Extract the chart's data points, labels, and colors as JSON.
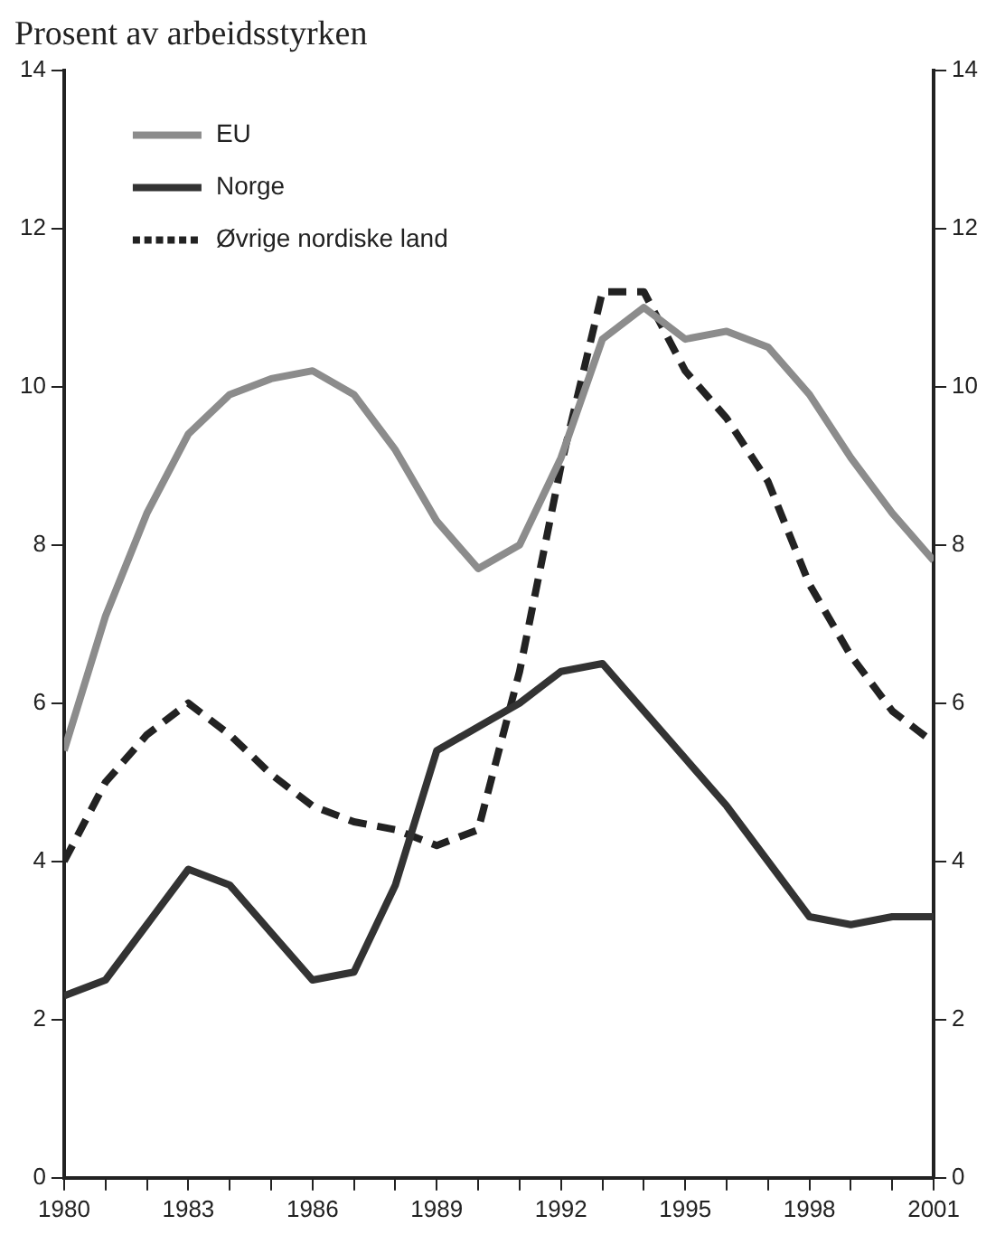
{
  "chart_data": {
    "type": "line",
    "title": "Prosent av arbeidsstyrken",
    "x": [
      1980,
      1981,
      1982,
      1983,
      1984,
      1985,
      1986,
      1987,
      1988,
      1989,
      1990,
      1991,
      1992,
      1993,
      1994,
      1995,
      1996,
      1997,
      1998,
      1999,
      2000,
      2001
    ],
    "series": [
      {
        "name": "EU",
        "color": "#8c8c8c",
        "line_style": "solid",
        "values": [
          5.4,
          7.1,
          8.4,
          9.4,
          9.9,
          10.1,
          10.2,
          9.9,
          9.2,
          8.3,
          7.7,
          8.0,
          9.1,
          10.6,
          11.0,
          10.6,
          10.7,
          10.5,
          9.9,
          9.1,
          8.4,
          7.8
        ]
      },
      {
        "name": "Norge",
        "color": "#333333",
        "line_style": "solid",
        "values": [
          2.3,
          2.5,
          3.2,
          3.9,
          3.7,
          3.1,
          2.5,
          2.6,
          3.7,
          5.4,
          5.7,
          6.0,
          6.4,
          6.5,
          5.9,
          5.3,
          4.7,
          4.0,
          3.3,
          3.2,
          3.3,
          3.3
        ]
      },
      {
        "name": "Øvrige nordiske land",
        "color": "#222222",
        "line_style": "dashed",
        "values": [
          4.0,
          5.0,
          5.6,
          6.0,
          5.6,
          5.1,
          4.7,
          4.5,
          4.4,
          4.2,
          4.4,
          6.4,
          9.0,
          11.2,
          11.2,
          10.2,
          9.6,
          8.8,
          7.5,
          6.6,
          5.9,
          5.5
        ]
      }
    ],
    "xlim": [
      1980,
      2001
    ],
    "xticks": [
      1980,
      {
        "value": 1981,
        "label": null
      },
      {
        "value": 1982,
        "label": null
      },
      1983,
      {
        "value": 1984,
        "label": null
      },
      {
        "value": 1985,
        "label": null
      },
      1986,
      {
        "value": 1987,
        "label": null
      },
      {
        "value": 1988,
        "label": null
      },
      1989,
      {
        "value": 1990,
        "label": null
      },
      {
        "value": 1991,
        "label": null
      },
      1992,
      {
        "value": 1993,
        "label": null
      },
      {
        "value": 1994,
        "label": null
      },
      1995,
      {
        "value": 1996,
        "label": null
      },
      {
        "value": 1997,
        "label": null
      },
      1998,
      {
        "value": 1999,
        "label": null
      },
      {
        "value": 2000,
        "label": null
      },
      2001
    ],
    "ylim": [
      0,
      14
    ],
    "yticks": [
      0,
      2,
      4,
      6,
      8,
      10,
      12,
      14
    ],
    "y2lim": [
      0,
      14
    ],
    "y2ticks": [
      0,
      2,
      4,
      6,
      8,
      10,
      12,
      14
    ],
    "grid": false,
    "legend": "top left",
    "marker": "none"
  }
}
